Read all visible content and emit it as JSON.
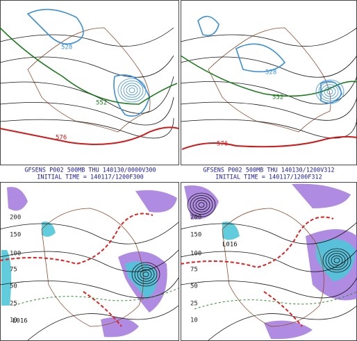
{
  "captions": [
    {
      "line1": "GFSENS P002 500MB THU 140130/0000V300",
      "line2": "INITIAL TIME = 140117/1200F300"
    },
    {
      "line1": "GFSENS P002 500MB THU 140130/1200V312",
      "line2": "INITIAL TIME = 140117/1200F312"
    }
  ],
  "contour_labels": [
    [
      "528",
      "552",
      "576"
    ],
    [
      "528",
      "552",
      "576"
    ]
  ],
  "color_scale": [
    "200",
    "150",
    "100",
    "75",
    "50",
    "25",
    "10"
  ],
  "lows": [
    "L016",
    "L016"
  ]
}
